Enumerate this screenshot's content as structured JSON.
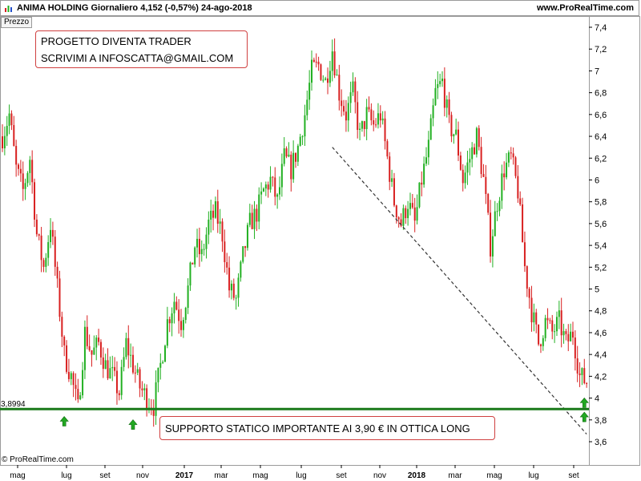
{
  "header": {
    "title": "ANIMA HOLDING   Giornaliero   4,152 (-0,57%)   24-ago-2018",
    "site": "www.ProRealTime.com"
  },
  "panel_label": "Prezzo",
  "credit": "© ProRealTime.com",
  "notes": {
    "top": [
      "PROGETTO DIVENTA TRADER",
      "SCRIVIMI A INFOSCATTA@GMAIL.COM"
    ],
    "bottom": "SUPPORTO STATICO IMPORTANTE AI 3,90 € IN OTTICA LONG"
  },
  "colors": {
    "up": "#22b022",
    "down": "#d82020",
    "support": "#1a7a1a",
    "trendline": "#333333",
    "arrow": "#22a822"
  },
  "chart_data": {
    "type": "candlestick",
    "title": "",
    "ylim": [
      3.5,
      7.4
    ],
    "yticks": [
      "7,4",
      "7,2",
      "7",
      "6,8",
      "6,6",
      "6,4",
      "6,2",
      "6",
      "5,8",
      "5,6",
      "5,4",
      "5,2",
      "5",
      "4,8",
      "4,6",
      "4,4",
      "4,2",
      "4",
      "3,8",
      "3,6"
    ],
    "ytick_values": [
      7.4,
      7.2,
      7.0,
      6.8,
      6.6,
      6.4,
      6.2,
      6.0,
      5.8,
      5.6,
      5.4,
      5.2,
      5.0,
      4.8,
      4.6,
      4.4,
      4.2,
      4.0,
      3.8,
      3.6
    ],
    "x_months": [
      "mag",
      "lug",
      "set",
      "nov",
      "2017",
      "mar",
      "mag",
      "lug",
      "set",
      "nov",
      "2018",
      "mar",
      "mag",
      "lug",
      "set"
    ],
    "x_month_bold": [
      false,
      false,
      false,
      false,
      true,
      false,
      false,
      false,
      false,
      false,
      true,
      false,
      false,
      false,
      false
    ],
    "price_path": [
      [
        0,
        6.4
      ],
      [
        3,
        6.6
      ],
      [
        6,
        6.1
      ],
      [
        9,
        5.9
      ],
      [
        12,
        6.2
      ],
      [
        15,
        5.5
      ],
      [
        18,
        5.2
      ],
      [
        21,
        5.6
      ],
      [
        24,
        5.0
      ],
      [
        27,
        4.4
      ],
      [
        30,
        4.2
      ],
      [
        33,
        3.9
      ],
      [
        36,
        4.6
      ],
      [
        39,
        4.4
      ],
      [
        42,
        4.5
      ],
      [
        45,
        4.3
      ],
      [
        48,
        4.2
      ],
      [
        51,
        4.05
      ],
      [
        54,
        4.5
      ],
      [
        57,
        4.3
      ],
      [
        60,
        4.1
      ],
      [
        63,
        4.0
      ],
      [
        66,
        3.93
      ],
      [
        69,
        4.3
      ],
      [
        72,
        4.7
      ],
      [
        75,
        4.9
      ],
      [
        78,
        4.7
      ],
      [
        81,
        5.0
      ],
      [
        84,
        5.4
      ],
      [
        87,
        5.3
      ],
      [
        90,
        5.6
      ],
      [
        93,
        5.7
      ],
      [
        96,
        5.5
      ],
      [
        99,
        5.0
      ],
      [
        102,
        4.9
      ],
      [
        105,
        5.3
      ],
      [
        108,
        5.6
      ],
      [
        111,
        5.7
      ],
      [
        114,
        5.9
      ],
      [
        117,
        6.0
      ],
      [
        120,
        5.8
      ],
      [
        123,
        6.2
      ],
      [
        126,
        6.1
      ],
      [
        129,
        6.3
      ],
      [
        132,
        6.6
      ],
      [
        135,
        7.0
      ],
      [
        138,
        7.05
      ],
      [
        141,
        6.9
      ],
      [
        144,
        7.2
      ],
      [
        147,
        6.8
      ],
      [
        150,
        6.6
      ],
      [
        153,
        6.8
      ],
      [
        156,
        6.4
      ],
      [
        159,
        6.6
      ],
      [
        162,
        6.5
      ],
      [
        165,
        6.6
      ],
      [
        168,
        6.2
      ],
      [
        171,
        5.8
      ],
      [
        174,
        5.6
      ],
      [
        177,
        5.8
      ],
      [
        180,
        5.6
      ],
      [
        183,
        6.0
      ],
      [
        186,
        6.3
      ],
      [
        189,
        6.8
      ],
      [
        192,
        6.9
      ],
      [
        195,
        6.5
      ],
      [
        198,
        6.4
      ],
      [
        201,
        6.0
      ],
      [
        204,
        6.2
      ],
      [
        207,
        6.4
      ],
      [
        210,
        6.0
      ],
      [
        213,
        5.4
      ],
      [
        216,
        5.8
      ],
      [
        219,
        6.1
      ],
      [
        222,
        6.2
      ],
      [
        225,
        5.9
      ],
      [
        228,
        5.2
      ],
      [
        231,
        4.8
      ],
      [
        234,
        4.5
      ],
      [
        237,
        4.7
      ],
      [
        240,
        4.6
      ],
      [
        243,
        4.7
      ],
      [
        246,
        4.5
      ],
      [
        249,
        4.6
      ],
      [
        252,
        4.2
      ],
      [
        255,
        4.15
      ]
    ],
    "support_level": 3.8994,
    "support_label": "3,8994",
    "trendline": {
      "from": [
        144,
        6.3
      ],
      "to": [
        255,
        3.67
      ]
    },
    "arrows": [
      [
        27,
        3.78
      ],
      [
        57,
        3.75
      ],
      [
        254,
        3.82
      ],
      [
        254,
        3.95
      ]
    ]
  }
}
